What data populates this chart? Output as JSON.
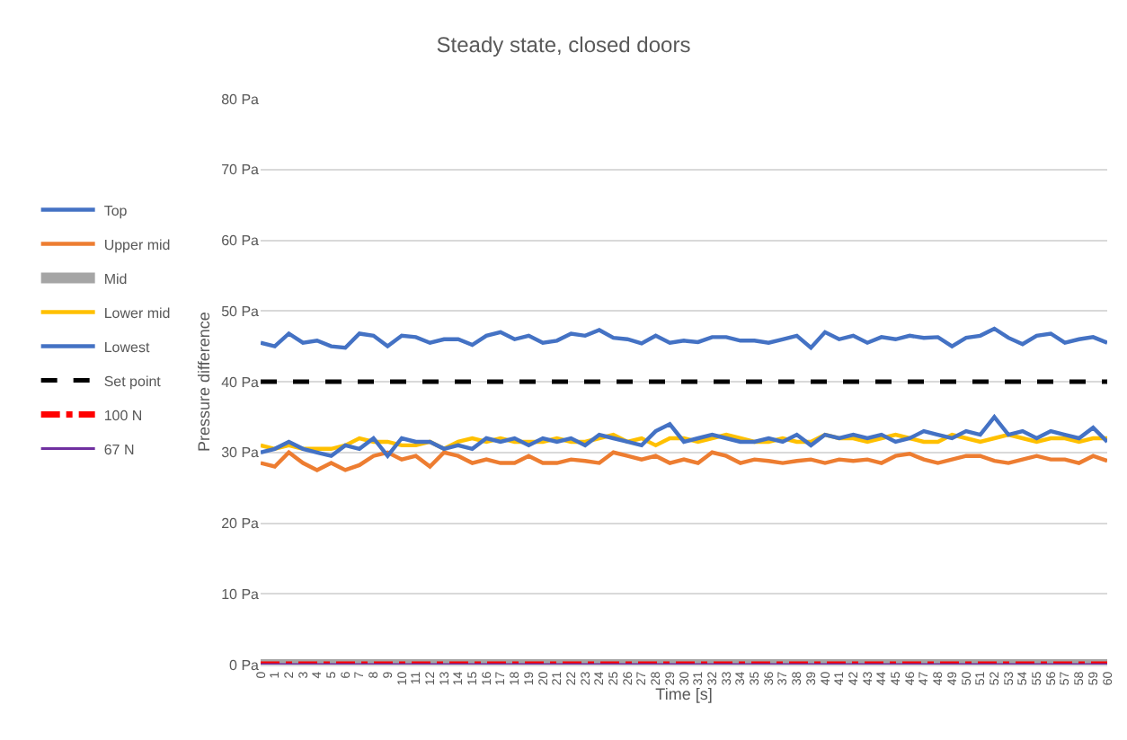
{
  "chart_data": {
    "type": "line",
    "title": "Steady state, closed doors",
    "xlabel": "Time [s]",
    "ylabel": "Pressure difference",
    "xlim": [
      0,
      60
    ],
    "xticks": [
      0,
      1,
      2,
      3,
      4,
      5,
      6,
      7,
      8,
      9,
      10,
      11,
      12,
      13,
      14,
      15,
      16,
      17,
      18,
      19,
      20,
      21,
      22,
      23,
      24,
      25,
      26,
      27,
      28,
      29,
      30,
      31,
      32,
      33,
      34,
      35,
      36,
      37,
      38,
      39,
      40,
      41,
      42,
      43,
      44,
      45,
      46,
      47,
      48,
      49,
      50,
      51,
      52,
      53,
      54,
      55,
      56,
      57,
      58,
      59,
      60
    ],
    "ylim": [
      0,
      80
    ],
    "yticks": [
      {
        "value": 0,
        "label": "0 Pa"
      },
      {
        "value": 10,
        "label": "10 Pa"
      },
      {
        "value": 20,
        "label": "20 Pa"
      },
      {
        "value": 30,
        "label": "30 Pa"
      },
      {
        "value": 40,
        "label": "40 Pa"
      },
      {
        "value": 50,
        "label": "50 Pa"
      },
      {
        "value": 60,
        "label": "60 Pa"
      },
      {
        "value": 70,
        "label": "70 Pa"
      },
      {
        "value": 80,
        "label": "80 Pa"
      }
    ],
    "grid": "y",
    "legend": "left",
    "marker": "none",
    "x": [
      0,
      1,
      2,
      3,
      4,
      5,
      6,
      7,
      8,
      9,
      10,
      11,
      12,
      13,
      14,
      15,
      16,
      17,
      18,
      19,
      20,
      21,
      22,
      23,
      24,
      25,
      26,
      27,
      28,
      29,
      30,
      31,
      32,
      33,
      34,
      35,
      36,
      37,
      38,
      39,
      40,
      41,
      42,
      43,
      44,
      45,
      46,
      47,
      48,
      49,
      50,
      51,
      52,
      53,
      54,
      55,
      56,
      57,
      58,
      59,
      60
    ],
    "series": [
      {
        "name": "Top",
        "color": "#4472c4",
        "values": [
          45.5,
          45,
          46.8,
          45.5,
          45.8,
          45,
          44.8,
          46.8,
          46.5,
          45,
          46.5,
          46.3,
          45.5,
          46,
          46,
          45.2,
          46.5,
          47,
          46,
          46.5,
          45.5,
          45.8,
          46.8,
          46.5,
          47.3,
          46.2,
          46,
          45.4,
          46.5,
          45.5,
          45.8,
          45.6,
          46.3,
          46.3,
          45.8,
          45.8,
          45.5,
          46,
          46.5,
          44.8,
          47,
          46,
          46.5,
          45.5,
          46.3,
          46,
          46.5,
          46.2,
          46.3,
          45,
          46.2,
          46.5,
          47.5,
          46.2,
          45.3,
          46.5,
          46.8,
          45.5,
          46,
          46.3,
          45.5
        ]
      },
      {
        "name": "Upper mid",
        "color": "#ed7d31",
        "values": [
          28.5,
          28,
          30,
          28.5,
          27.5,
          28.5,
          27.5,
          28.2,
          29.5,
          30,
          29,
          29.5,
          28,
          30,
          29.5,
          28.5,
          29,
          28.5,
          28.5,
          29.5,
          28.5,
          28.5,
          29,
          28.8,
          28.5,
          30,
          29.5,
          29,
          29.5,
          28.5,
          29,
          28.5,
          30,
          29.5,
          28.5,
          29,
          28.8,
          28.5,
          28.8,
          29,
          28.5,
          29,
          28.8,
          29,
          28.5,
          29.5,
          29.8,
          29,
          28.5,
          29,
          29.5,
          29.5,
          28.8,
          28.5,
          29,
          29.5,
          29,
          29,
          28.5,
          29.5,
          28.8
        ]
      },
      {
        "name": "Mid",
        "color": "#a5a5a5",
        "values": [
          0,
          0,
          0,
          0,
          0,
          0,
          0,
          0,
          0,
          0,
          0,
          0,
          0,
          0,
          0,
          0,
          0,
          0,
          0,
          0,
          0,
          0,
          0,
          0,
          0,
          0,
          0,
          0,
          0,
          0,
          0,
          0,
          0,
          0,
          0,
          0,
          0,
          0,
          0,
          0,
          0,
          0,
          0,
          0,
          0,
          0,
          0,
          0,
          0,
          0,
          0,
          0,
          0,
          0,
          0,
          0,
          0,
          0,
          0,
          0,
          0
        ]
      },
      {
        "name": "Lower mid",
        "color": "#ffc000",
        "values": [
          31,
          30.5,
          31,
          30.5,
          30.5,
          30.5,
          31,
          32,
          31.5,
          31.5,
          31,
          31,
          31.5,
          30.5,
          31.5,
          32,
          31.5,
          32,
          31.5,
          31.5,
          31.5,
          32,
          31.5,
          31.5,
          32,
          32.5,
          31.5,
          32,
          31,
          32,
          32,
          31.5,
          32,
          32.5,
          32,
          31.5,
          31.5,
          32,
          31.5,
          31.5,
          32.5,
          32,
          32,
          31.5,
          32,
          32.5,
          32,
          31.5,
          31.5,
          32.5,
          32,
          31.5,
          32,
          32.5,
          32,
          31.5,
          32,
          32,
          31.5,
          32,
          32
        ]
      },
      {
        "name": "Lowest",
        "color": "#4472c4",
        "values": [
          30,
          30.5,
          31.5,
          30.5,
          30,
          29.5,
          31,
          30.5,
          32,
          29.5,
          32,
          31.5,
          31.5,
          30.5,
          31,
          30.5,
          32,
          31.5,
          32,
          31,
          32,
          31.5,
          32,
          31,
          32.5,
          32,
          31.5,
          31,
          33,
          34,
          31.5,
          32,
          32.5,
          32,
          31.5,
          31.5,
          32,
          31.5,
          32.5,
          31,
          32.5,
          32,
          32.5,
          32,
          32.5,
          31.5,
          32,
          33,
          32.5,
          32,
          33,
          32.5,
          35,
          32.5,
          33,
          32,
          33,
          32.5,
          32,
          33.5,
          31.5
        ]
      },
      {
        "name": "Set point",
        "color": "#000000",
        "line_style": "dashed",
        "values": [
          40,
          40,
          40,
          40,
          40,
          40,
          40,
          40,
          40,
          40,
          40,
          40,
          40,
          40,
          40,
          40,
          40,
          40,
          40,
          40,
          40,
          40,
          40,
          40,
          40,
          40,
          40,
          40,
          40,
          40,
          40,
          40,
          40,
          40,
          40,
          40,
          40,
          40,
          40,
          40,
          40,
          40,
          40,
          40,
          40,
          40,
          40,
          40,
          40,
          40,
          40,
          40,
          40,
          40,
          40,
          40,
          40,
          40,
          40,
          40,
          40
        ]
      },
      {
        "name": "100 N",
        "color": "#ff0000",
        "line_style": "dashdot",
        "values": [
          0,
          0,
          0,
          0,
          0,
          0,
          0,
          0,
          0,
          0,
          0,
          0,
          0,
          0,
          0,
          0,
          0,
          0,
          0,
          0,
          0,
          0,
          0,
          0,
          0,
          0,
          0,
          0,
          0,
          0,
          0,
          0,
          0,
          0,
          0,
          0,
          0,
          0,
          0,
          0,
          0,
          0,
          0,
          0,
          0,
          0,
          0,
          0,
          0,
          0,
          0,
          0,
          0,
          0,
          0,
          0,
          0,
          0,
          0,
          0,
          0
        ]
      },
      {
        "name": "67 N",
        "color": "#7030a0",
        "values": [
          0,
          0,
          0,
          0,
          0,
          0,
          0,
          0,
          0,
          0,
          0,
          0,
          0,
          0,
          0,
          0,
          0,
          0,
          0,
          0,
          0,
          0,
          0,
          0,
          0,
          0,
          0,
          0,
          0,
          0,
          0,
          0,
          0,
          0,
          0,
          0,
          0,
          0,
          0,
          0,
          0,
          0,
          0,
          0,
          0,
          0,
          0,
          0,
          0,
          0,
          0,
          0,
          0,
          0,
          0,
          0,
          0,
          0,
          0,
          0,
          0
        ]
      }
    ]
  }
}
